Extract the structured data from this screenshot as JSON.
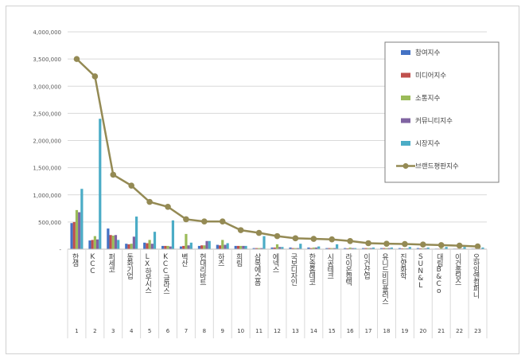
{
  "chart_data": {
    "type": "bar",
    "ylim": [
      0,
      4000000
    ],
    "y_ticks": [
      0,
      500000,
      1000000,
      1500000,
      2000000,
      2500000,
      3000000,
      3500000,
      4000000
    ],
    "y_tick_labels": [
      "-",
      "500,000",
      "1,000,000",
      "1,500,000",
      "2,000,000",
      "2,500,000",
      "3,000,000",
      "3,500,000",
      "4,000,000"
    ],
    "grid": true,
    "legend_position": "top-right",
    "index_labels": [
      "1",
      "2",
      "3",
      "4",
      "5",
      "6",
      "7",
      "8",
      "9",
      "10",
      "11",
      "12",
      "13",
      "14",
      "15",
      "16",
      "17",
      "18",
      "19",
      "20",
      "21",
      "22",
      "23"
    ],
    "categories": [
      "한샘",
      "KCC",
      "퍼세코",
      "동화기업",
      "LX하우시스",
      "KCC글라스",
      "벽산",
      "현대리바트",
      "하츠",
      "희림",
      "삼목에스폼",
      "에넥스",
      "국보디자인",
      "한솔홈데코",
      "시공테크",
      "라이온켐텍",
      "이건산업",
      "유니드비티플러스",
      "진양화학",
      "SUN&L",
      "대림B&Co",
      "이건홀딩스",
      "오하임앤컴퍼니"
    ],
    "series": [
      {
        "name": "참여지수",
        "type": "bar",
        "color": "#4472c4",
        "values": [
          480000,
          160000,
          380000,
          100000,
          120000,
          60000,
          50000,
          60000,
          80000,
          60000,
          20000,
          30000,
          30000,
          30000,
          20000,
          20000,
          20000,
          20000,
          20000,
          20000,
          10000,
          10000,
          10000
        ]
      },
      {
        "name": "미디어지수",
        "type": "bar",
        "color": "#c0504d",
        "values": [
          500000,
          170000,
          260000,
          90000,
          110000,
          60000,
          60000,
          70000,
          70000,
          60000,
          20000,
          30000,
          20000,
          20000,
          20000,
          15000,
          20000,
          20000,
          15000,
          15000,
          10000,
          10000,
          10000
        ]
      },
      {
        "name": "소통지수",
        "type": "bar",
        "color": "#9bbb59",
        "values": [
          720000,
          240000,
          250000,
          100000,
          170000,
          60000,
          280000,
          70000,
          170000,
          60000,
          20000,
          90000,
          20000,
          30000,
          20000,
          30000,
          20000,
          20000,
          15000,
          15000,
          20000,
          10000,
          10000
        ]
      },
      {
        "name": "커뮤니티지수",
        "type": "bar",
        "color": "#8064a2",
        "values": [
          680000,
          180000,
          260000,
          230000,
          100000,
          50000,
          70000,
          150000,
          80000,
          60000,
          20000,
          40000,
          20000,
          30000,
          20000,
          20000,
          20000,
          20000,
          15000,
          15000,
          10000,
          10000,
          10000
        ]
      },
      {
        "name": "시장지수",
        "type": "bar",
        "color": "#4bacc6",
        "values": [
          1110000,
          2400000,
          170000,
          600000,
          320000,
          530000,
          120000,
          150000,
          110000,
          60000,
          240000,
          40000,
          100000,
          50000,
          90000,
          20000,
          30000,
          30000,
          40000,
          30000,
          40000,
          40000,
          30000
        ]
      },
      {
        "name": "브랜드평판지수",
        "type": "line",
        "color": "#948a54",
        "values": [
          3500000,
          3180000,
          1370000,
          1170000,
          870000,
          780000,
          550000,
          510000,
          510000,
          350000,
          300000,
          240000,
          200000,
          190000,
          180000,
          150000,
          110000,
          100000,
          95000,
          85000,
          75000,
          65000,
          50000
        ]
      }
    ]
  }
}
